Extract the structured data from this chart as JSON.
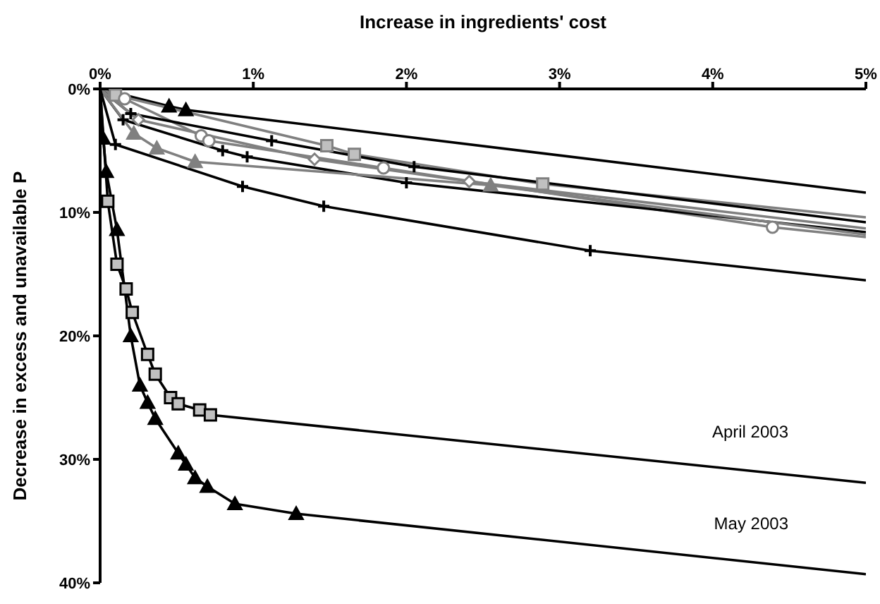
{
  "chart_data": {
    "type": "line",
    "xlabel": "Increase in ingredients' cost",
    "ylabel": "Decrease in excess and unavailable P",
    "xlim": [
      0,
      5
    ],
    "xticks": [
      {
        "value": 0,
        "label": "0%"
      },
      {
        "value": 1,
        "label": "1%"
      },
      {
        "value": 2,
        "label": "2%"
      },
      {
        "value": 3,
        "label": "3%"
      },
      {
        "value": 4,
        "label": "4%"
      },
      {
        "value": 5,
        "label": "5%"
      }
    ],
    "ylim": [
      40,
      0
    ],
    "yticks": [
      {
        "value": 0,
        "label": "0%"
      },
      {
        "value": 10,
        "label": "10%"
      },
      {
        "value": 20,
        "label": "20%"
      },
      {
        "value": 30,
        "label": "30%"
      },
      {
        "value": 40,
        "label": "40%"
      }
    ],
    "grid": false,
    "legend": false,
    "line_style": "solid",
    "series": [
      {
        "color": "#000000",
        "marker": "triangle",
        "x": [
          0,
          0.45,
          0.56,
          5
        ],
        "values": [
          0,
          1.4,
          1.7,
          8.4
        ]
      },
      {
        "color": "#808080",
        "marker": "square",
        "x": [
          0,
          0.1,
          1.48,
          1.66,
          2.89,
          5
        ],
        "values": [
          0,
          0.5,
          4.6,
          5.3,
          7.7,
          10.4
        ]
      },
      {
        "color": "#808080",
        "marker": "circle",
        "x": [
          0,
          0.16,
          0.66,
          0.71,
          1.85,
          4.39,
          5
        ],
        "values": [
          0,
          0.8,
          3.8,
          4.2,
          6.4,
          11.2,
          12.0
        ]
      },
      {
        "color": "#000000",
        "marker": "cross",
        "x": [
          0,
          0.2,
          1.12,
          2.05,
          5
        ],
        "values": [
          0,
          2.0,
          4.2,
          6.3,
          10.8
        ]
      },
      {
        "color": "#000000",
        "marker": "cross",
        "x": [
          0,
          0.15,
          0.8,
          0.96,
          2.0,
          5
        ],
        "values": [
          0,
          2.5,
          5.0,
          5.5,
          7.6,
          11.6
        ]
      },
      {
        "color": "#808080",
        "marker": "triangle",
        "x": [
          0,
          0.22,
          0.37,
          0.62,
          2.55,
          5
        ],
        "values": [
          0,
          3.6,
          4.8,
          5.9,
          7.8,
          11.8
        ]
      },
      {
        "color": "#808080",
        "marker": "diamond",
        "x": [
          0,
          0.25,
          1.4,
          2.41,
          5
        ],
        "values": [
          0,
          2.5,
          5.7,
          7.5,
          11.3
        ]
      },
      {
        "color": "#000000",
        "marker": "cross",
        "x": [
          0,
          0.1,
          0.93,
          1.46,
          3.2,
          5
        ],
        "values": [
          0,
          4.5,
          7.9,
          9.5,
          13.1,
          15.5
        ]
      },
      {
        "name": "April 2003",
        "color": "#000000",
        "marker": "square",
        "x": [
          0,
          0.05,
          0.11,
          0.17,
          0.21,
          0.31,
          0.36,
          0.46,
          0.51,
          0.65,
          0.72,
          5
        ],
        "values": [
          0,
          9.1,
          14.2,
          16.2,
          18.1,
          21.5,
          23.1,
          25.0,
          25.5,
          26.0,
          26.4,
          31.9
        ]
      },
      {
        "name": "May  2003",
        "color": "#000000",
        "marker": "triangle",
        "x": [
          0,
          0.02,
          0.04,
          0.11,
          0.2,
          0.26,
          0.31,
          0.36,
          0.51,
          0.56,
          0.62,
          0.7,
          0.88,
          1.28,
          5
        ],
        "values": [
          0,
          4.0,
          6.7,
          11.4,
          20.0,
          24.0,
          25.4,
          26.7,
          29.5,
          30.4,
          31.5,
          32.2,
          33.6,
          34.4,
          39.3
        ]
      }
    ]
  }
}
